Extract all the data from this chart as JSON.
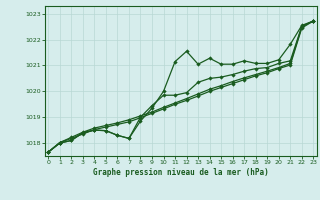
{
  "xlabel": "Graphe pression niveau de la mer (hPa)",
  "ylim": [
    1017.5,
    1023.3
  ],
  "xlim": [
    -0.3,
    23.3
  ],
  "yticks": [
    1018,
    1019,
    1020,
    1021,
    1022,
    1023
  ],
  "xticks": [
    0,
    1,
    2,
    3,
    4,
    5,
    6,
    7,
    8,
    9,
    10,
    11,
    12,
    13,
    14,
    15,
    16,
    17,
    18,
    19,
    20,
    21,
    22,
    23
  ],
  "bg_color": "#d6edec",
  "line_color": "#1a5c20",
  "grid_color": "#b8d8d5",
  "line_marker1": [
    1017.65,
    1018.0,
    1018.1,
    1018.4,
    1018.5,
    1018.48,
    1018.3,
    1018.18,
    1018.85,
    1019.35,
    1020.0,
    1021.15,
    1021.55,
    1021.05,
    1021.28,
    1021.05,
    1021.05,
    1021.18,
    1021.08,
    1021.08,
    1021.22,
    1021.82,
    1022.55,
    1022.72
  ],
  "line_marker2": [
    1017.65,
    1018.0,
    1018.1,
    1018.4,
    1018.5,
    1018.48,
    1018.3,
    1018.18,
    1019.0,
    1019.45,
    1019.85,
    1019.85,
    1019.95,
    1020.35,
    1020.5,
    1020.55,
    1020.65,
    1020.78,
    1020.88,
    1020.92,
    1021.08,
    1021.18,
    1022.52,
    1022.72
  ],
  "line_smooth1": [
    1017.65,
    1018.02,
    1018.22,
    1018.42,
    1018.58,
    1018.68,
    1018.78,
    1018.9,
    1019.05,
    1019.2,
    1019.38,
    1019.55,
    1019.72,
    1019.9,
    1020.08,
    1020.22,
    1020.38,
    1020.52,
    1020.65,
    1020.78,
    1020.92,
    1021.08,
    1022.5,
    1022.72
  ],
  "line_smooth2": [
    1017.65,
    1018.02,
    1018.18,
    1018.35,
    1018.52,
    1018.62,
    1018.72,
    1018.82,
    1018.98,
    1019.15,
    1019.32,
    1019.5,
    1019.65,
    1019.82,
    1020.0,
    1020.15,
    1020.3,
    1020.45,
    1020.6,
    1020.72,
    1020.88,
    1021.02,
    1022.45,
    1022.72
  ]
}
